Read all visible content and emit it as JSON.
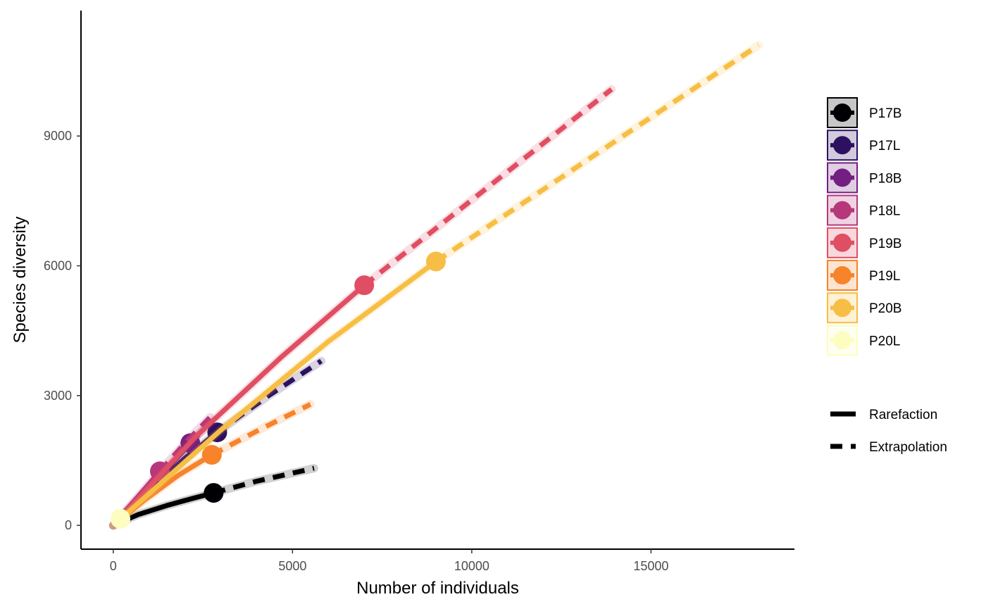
{
  "chart_data": {
    "type": "line",
    "xlabel": "Number of individuals",
    "ylabel": "Species diversity",
    "xlim": [
      -900,
      19000
    ],
    "ylim": [
      -550,
      11900
    ],
    "x_ticks": [
      0,
      5000,
      10000,
      15000
    ],
    "y_ticks": [
      0,
      3000,
      6000,
      9000
    ],
    "grid": false,
    "legend_position": "right",
    "linetype_legend": [
      "Rarefaction",
      "Extrapolation"
    ],
    "series": [
      {
        "name": "P17B",
        "color": "#000004",
        "rarefaction": [
          [
            0,
            0
          ],
          [
            700,
            250
          ],
          [
            1500,
            460
          ],
          [
            2200,
            620
          ],
          [
            2800,
            750
          ]
        ],
        "extrapolation": [
          [
            2800,
            750
          ],
          [
            4000,
            1020
          ],
          [
            5600,
            1320
          ]
        ],
        "observed": [
          2800,
          750
        ]
      },
      {
        "name": "P17L",
        "color": "#2D1160",
        "rarefaction": [
          [
            0,
            0
          ],
          [
            1000,
            800
          ],
          [
            2000,
            1550
          ],
          [
            2900,
            2150
          ]
        ],
        "extrapolation": [
          [
            2900,
            2150
          ],
          [
            4300,
            2980
          ],
          [
            5800,
            3800
          ]
        ],
        "observed": [
          2900,
          2150
        ]
      },
      {
        "name": "P18B",
        "color": "#721F81",
        "rarefaction": [
          [
            0,
            0
          ],
          [
            800,
            700
          ],
          [
            1600,
            1400
          ],
          [
            2150,
            1900
          ]
        ],
        "extrapolation": [
          [
            2150,
            1900
          ],
          [
            2500,
            2200
          ]
        ],
        "observed": [
          2150,
          1900
        ]
      },
      {
        "name": "P18L",
        "color": "#B6377A",
        "rarefaction": [
          [
            0,
            0
          ],
          [
            600,
            580
          ],
          [
            1300,
            1250
          ]
        ],
        "extrapolation": [
          [
            1300,
            1250
          ],
          [
            2000,
            1900
          ],
          [
            2700,
            2500
          ]
        ],
        "observed": [
          1300,
          1250
        ]
      },
      {
        "name": "P19B",
        "color": "#E04E63",
        "rarefaction": [
          [
            0,
            0
          ],
          [
            2300,
            2050
          ],
          [
            4700,
            3900
          ],
          [
            7000,
            5550
          ]
        ],
        "extrapolation": [
          [
            7000,
            5550
          ],
          [
            10500,
            7850
          ],
          [
            13900,
            10080
          ]
        ],
        "observed": [
          7000,
          5550
        ]
      },
      {
        "name": "P19L",
        "color": "#F7832B",
        "rarefaction": [
          [
            0,
            0
          ],
          [
            900,
            600
          ],
          [
            1800,
            1150
          ],
          [
            2750,
            1630
          ]
        ],
        "extrapolation": [
          [
            2750,
            1630
          ],
          [
            4100,
            2220
          ],
          [
            5500,
            2800
          ]
        ],
        "observed": [
          2750,
          1630
        ]
      },
      {
        "name": "P20B",
        "color": "#F7BE45",
        "rarefaction": [
          [
            0,
            0
          ],
          [
            3000,
            2200
          ],
          [
            6000,
            4250
          ],
          [
            9000,
            6100
          ]
        ],
        "extrapolation": [
          [
            9000,
            6100
          ],
          [
            13500,
            8600
          ],
          [
            18000,
            11100
          ]
        ],
        "observed": [
          9000,
          6100
        ]
      },
      {
        "name": "P20L",
        "color": "#FCFDBF",
        "rarefaction": [
          [
            0,
            0
          ],
          [
            100,
            80
          ],
          [
            200,
            150
          ]
        ],
        "extrapolation": [
          [
            200,
            150
          ],
          [
            300,
            220
          ]
        ],
        "observed": [
          200,
          150
        ]
      }
    ]
  }
}
